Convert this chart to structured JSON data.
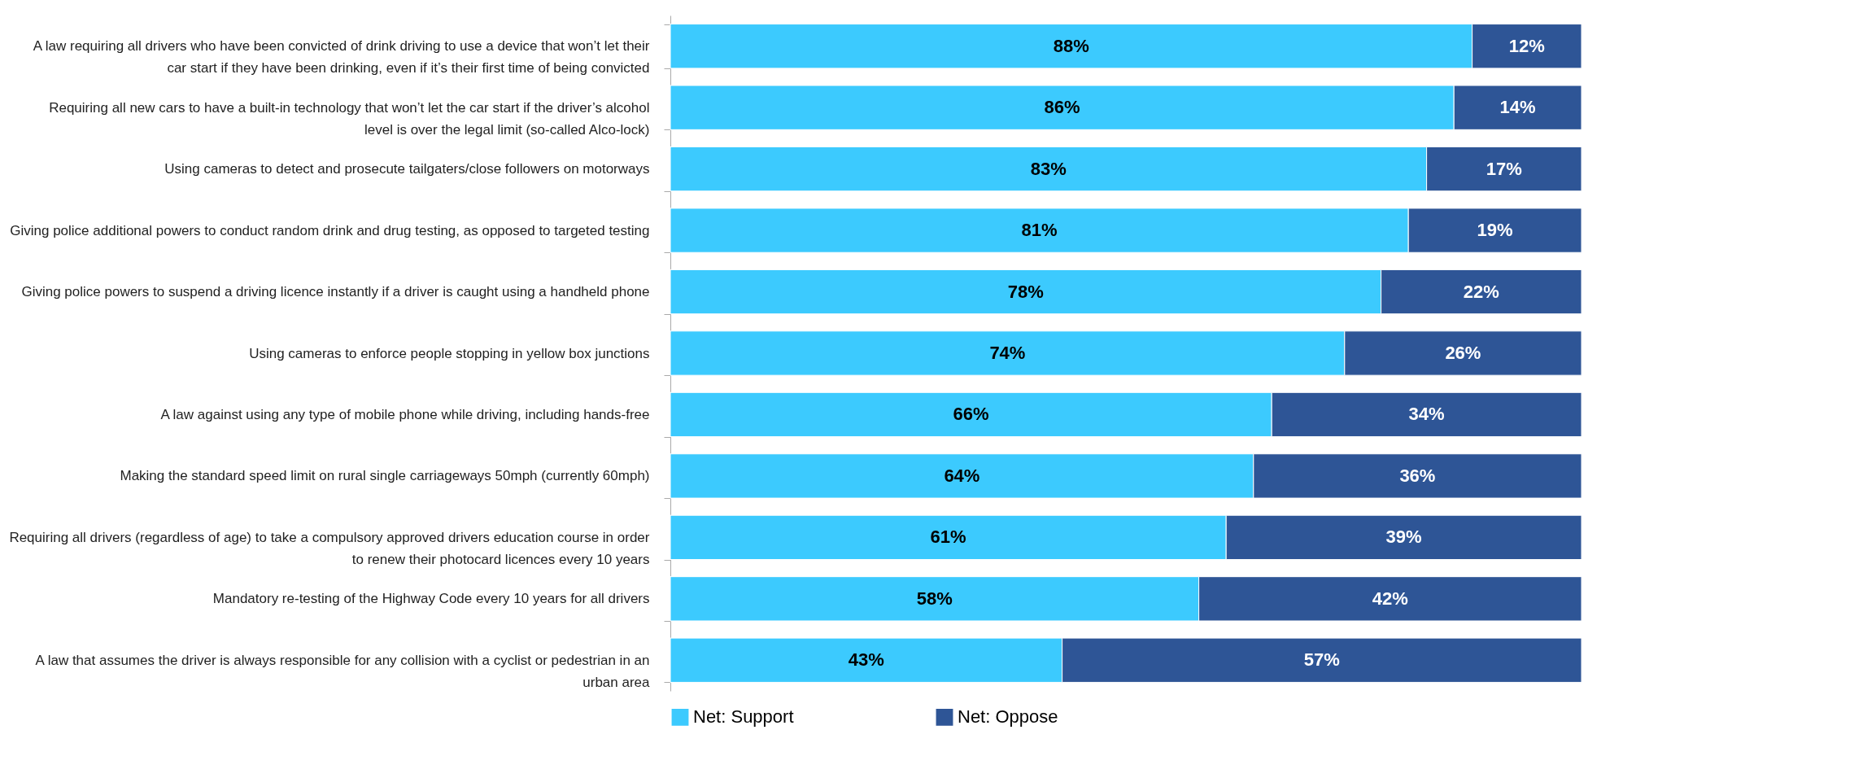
{
  "chart_data": {
    "type": "bar",
    "orientation": "horizontal",
    "stacked": true,
    "legend": "bottom",
    "tick_labels": "y",
    "categories": [
      "A law requiring all drivers who have been convicted of drink driving to use a device that won’t let their car start if they have been drinking, even if it’s their first time of being convicted",
      "Requiring all new cars to have a built-in technology that won’t let the car start if the driver’s alcohol level is over the legal limit (so-called Alco-lock)",
      "Using cameras to detect and prosecute tailgaters/close followers on motorways",
      "Giving police additional powers to conduct random drink and drug testing, as opposed to targeted testing",
      "Giving police powers to suspend a driving licence instantly if a driver is caught using a handheld phone",
      "Using cameras to enforce people stopping in yellow box junctions",
      "A law against using any type of mobile phone while driving, including hands-free",
      "Making the standard speed limit on rural single carriageways 50mph (currently 60mph)",
      "Requiring all drivers (regardless of age) to take a compulsory approved drivers education course in order to renew their photocard licences every 10 years",
      "Mandatory re-testing of the Highway Code every 10 years for all drivers",
      "A law that assumes the driver is always responsible for any collision with a cyclist or pedestrian in an urban area"
    ],
    "series": [
      {
        "name": "Net: Support",
        "color": "#3ccafe",
        "values": [
          88,
          86,
          83,
          81,
          78,
          74,
          66,
          64,
          61,
          58,
          43
        ],
        "value_labels": [
          "88%",
          "86%",
          "83%",
          "81%",
          "78%",
          "74%",
          "66%",
          "64%",
          "61%",
          "58%",
          "43%"
        ]
      },
      {
        "name": "Net: Oppose",
        "color": "#2e5596",
        "values": [
          12,
          14,
          17,
          19,
          22,
          26,
          34,
          36,
          39,
          42,
          57
        ],
        "value_labels": [
          "12%",
          "14%",
          "17%",
          "19%",
          "22%",
          "26%",
          "34%",
          "36%",
          "39%",
          "42%",
          "57%"
        ]
      }
    ]
  }
}
